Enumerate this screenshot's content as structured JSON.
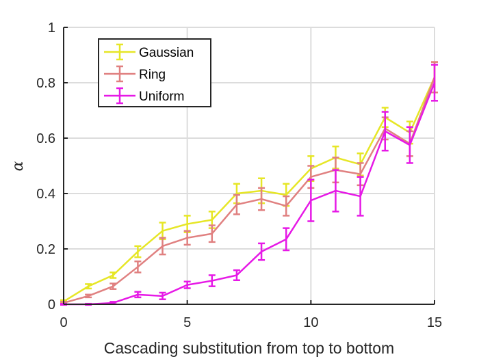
{
  "chart_data": {
    "type": "line",
    "title": "",
    "xlabel": "Cascading substitution from top to bottom",
    "ylabel": "α",
    "xlim": [
      0,
      15
    ],
    "ylim": [
      0,
      1
    ],
    "x_ticks": [
      "0",
      "5",
      "10",
      "15"
    ],
    "y_ticks": [
      "0",
      "0.2",
      "0.4",
      "0.6",
      "0.8",
      "1"
    ],
    "grid": "on",
    "legend_position": "top-left",
    "x": [
      0,
      1,
      2,
      3,
      4,
      5,
      6,
      7,
      8,
      9,
      10,
      11,
      12,
      13,
      14,
      15
    ],
    "series": [
      {
        "name": "Gaussian",
        "color": "#e6e626",
        "values": [
          0.01,
          0.065,
          0.105,
          0.19,
          0.265,
          0.29,
          0.305,
          0.4,
          0.41,
          0.395,
          0.49,
          0.53,
          0.505,
          0.675,
          0.62,
          0.82
        ],
        "errors": [
          0.005,
          0.008,
          0.01,
          0.02,
          0.03,
          0.03,
          0.03,
          0.035,
          0.045,
          0.04,
          0.045,
          0.04,
          0.04,
          0.035,
          0.04,
          0.055
        ]
      },
      {
        "name": "Ring",
        "color": "#e08080",
        "values": [
          0.005,
          0.03,
          0.065,
          0.135,
          0.21,
          0.24,
          0.255,
          0.36,
          0.38,
          0.355,
          0.46,
          0.485,
          0.47,
          0.635,
          0.58,
          0.82
        ],
        "errors": [
          0.004,
          0.005,
          0.01,
          0.02,
          0.03,
          0.025,
          0.03,
          0.035,
          0.04,
          0.035,
          0.04,
          0.045,
          0.04,
          0.04,
          0.045,
          0.055
        ]
      },
      {
        "name": "Uniform",
        "color": "#e619e6",
        "values": [
          0.0,
          0.0,
          0.005,
          0.035,
          0.03,
          0.07,
          0.085,
          0.105,
          0.19,
          0.235,
          0.375,
          0.41,
          0.39,
          0.625,
          0.575,
          0.8
        ],
        "errors": [
          0.002,
          0.002,
          0.004,
          0.01,
          0.012,
          0.012,
          0.02,
          0.018,
          0.03,
          0.04,
          0.075,
          0.075,
          0.07,
          0.07,
          0.065,
          0.065
        ]
      }
    ]
  }
}
